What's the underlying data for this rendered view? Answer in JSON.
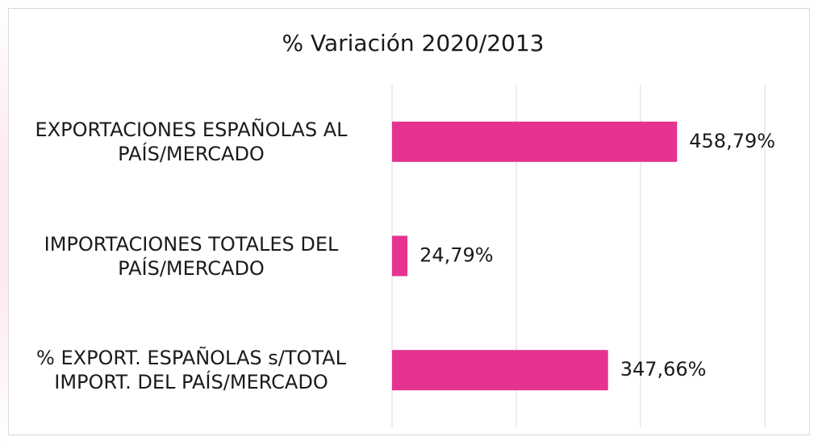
{
  "chart_data": {
    "type": "bar",
    "orientation": "horizontal",
    "title": "% Variación 2020/2013",
    "categories": [
      "EXPORTACIONES ESPAÑOLAS AL PAÍS/MERCADO",
      "IMPORTACIONES TOTALES DEL PAÍS/MERCADO",
      "% EXPORT. ESPAÑOLAS s/TOTAL IMPORT. DEL PAÍS/MERCADO"
    ],
    "values": [
      458.79,
      24.79,
      347.66
    ],
    "value_labels": [
      "458,79%",
      "24,79%",
      "347,66%"
    ],
    "color": "#e5338f",
    "xlim": [
      0,
      600
    ],
    "xticks": [
      0,
      200,
      400,
      600
    ],
    "grid": true
  }
}
